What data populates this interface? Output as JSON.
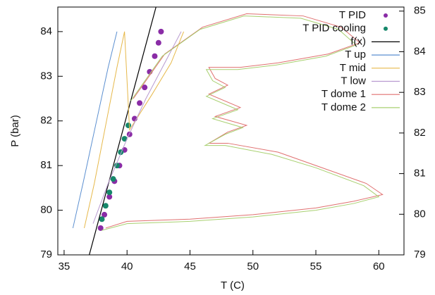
{
  "chart_data": {
    "type": "line",
    "xlabel": "T (C)",
    "ylabel": "P (bar)",
    "xlim": [
      34.5,
      62
    ],
    "ylim": [
      79,
      84.55
    ],
    "y2lim": [
      79,
      85.1
    ],
    "xticks": [
      35,
      40,
      45,
      50,
      55,
      60
    ],
    "yticks": [
      79,
      80,
      81,
      82,
      83,
      84
    ],
    "y2ticks": [
      79,
      80,
      81,
      82,
      83,
      84,
      85
    ],
    "legend": "top-right",
    "series": [
      {
        "name": "T PID",
        "color": "#8a2ca6",
        "style": "points",
        "x": [
          37.9,
          38.2,
          38.6,
          39.0,
          39.4,
          39.8,
          40.2,
          40.6,
          41.0,
          41.4,
          41.8,
          42.2,
          42.5,
          42.7
        ],
        "values": [
          79.6,
          79.9,
          80.3,
          80.65,
          81.0,
          81.35,
          81.7,
          82.05,
          82.4,
          82.75,
          83.1,
          83.45,
          83.75,
          84.0
        ]
      },
      {
        "name": "T PID cooling",
        "color": "#16876a",
        "style": "points",
        "x": [
          38.0,
          38.3,
          38.6,
          38.9,
          39.2,
          39.5,
          39.8,
          40.1
        ],
        "values": [
          79.8,
          80.1,
          80.4,
          80.7,
          81.0,
          81.3,
          81.6,
          81.9
        ]
      },
      {
        "name": "f(x)",
        "color": "#000000",
        "style": "lines",
        "x": [
          37.0,
          42.3
        ],
        "values": [
          79.0,
          84.55
        ]
      },
      {
        "name": "T up",
        "color": "#5b8fd0",
        "style": "lines",
        "x": [
          35.7,
          36.5,
          37.5,
          38.5,
          39.2
        ],
        "values": [
          79.6,
          80.6,
          81.9,
          83.2,
          84.0
        ]
      },
      {
        "name": "T mid",
        "color": "#e6b84a",
        "style": "lines",
        "x": [
          36.6,
          37.4,
          38.3,
          39.2,
          39.8,
          40.2,
          42.0,
          43.5,
          44.5
        ],
        "values": [
          79.6,
          80.6,
          81.9,
          83.2,
          84.0,
          81.8,
          82.6,
          83.3,
          84.0
        ]
      },
      {
        "name": "T low",
        "color": "#b89ad0",
        "style": "lines",
        "x": [
          37.3,
          38.5,
          40.0,
          41.5,
          43.0,
          44.3
        ],
        "values": [
          79.7,
          80.6,
          81.6,
          82.5,
          83.3,
          84.0
        ]
      },
      {
        "name": "T dome 1",
        "color": "#e07070",
        "style": "lines",
        "x": [
          38.3,
          40.0,
          45.0,
          50.0,
          55.0,
          58.0,
          60.3,
          59.0,
          55.0,
          52.0,
          48.0,
          46.5,
          48.0,
          49.5,
          47.0,
          49.0,
          46.5,
          48.0,
          47.0,
          46.5,
          49.0,
          52.0,
          56.0,
          58.5,
          57.0,
          54.0,
          49.5,
          46.0,
          43.0,
          40.5
        ],
        "values": [
          79.6,
          79.75,
          79.8,
          79.9,
          80.05,
          80.2,
          80.35,
          80.6,
          81.0,
          81.3,
          81.5,
          81.5,
          81.75,
          81.9,
          82.1,
          82.3,
          82.6,
          82.8,
          82.95,
          83.2,
          83.2,
          83.3,
          83.5,
          83.75,
          84.1,
          84.35,
          84.4,
          84.1,
          83.5,
          82.5
        ]
      },
      {
        "name": "T dome 2",
        "color": "#a8d070",
        "style": "lines",
        "x": [
          38.0,
          40.0,
          45.0,
          50.0,
          55.0,
          58.0,
          60.0,
          58.8,
          55.0,
          51.5,
          47.8,
          46.2,
          47.8,
          49.2,
          46.8,
          48.8,
          46.3,
          47.8,
          46.8,
          46.3,
          48.8,
          51.8,
          55.8,
          58.2,
          56.8,
          53.8,
          49.3,
          45.8,
          42.8,
          40.3
        ],
        "values": [
          79.55,
          79.7,
          79.75,
          79.85,
          80.0,
          80.15,
          80.3,
          80.55,
          80.95,
          81.25,
          81.45,
          81.45,
          81.7,
          81.85,
          82.05,
          82.25,
          82.55,
          82.75,
          82.9,
          83.15,
          83.15,
          83.25,
          83.45,
          83.7,
          84.05,
          84.3,
          84.35,
          84.05,
          83.45,
          82.45
        ]
      }
    ]
  }
}
